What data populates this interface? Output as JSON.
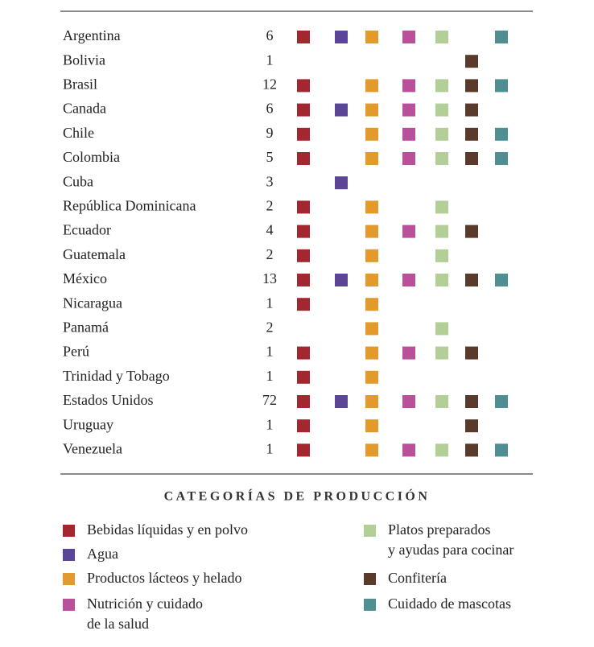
{
  "table": {
    "rows": [
      {
        "country": "Argentina",
        "count": "6",
        "marks": [
          true,
          true,
          true,
          true,
          true,
          false,
          true
        ]
      },
      {
        "country": "Bolivia",
        "count": "1",
        "marks": [
          false,
          false,
          false,
          false,
          false,
          true,
          false
        ]
      },
      {
        "country": "Brasil",
        "count": "12",
        "marks": [
          true,
          false,
          true,
          true,
          true,
          true,
          true
        ]
      },
      {
        "country": "Canada",
        "count": "6",
        "marks": [
          true,
          true,
          true,
          true,
          true,
          true,
          false
        ]
      },
      {
        "country": "Chile",
        "count": "9",
        "marks": [
          true,
          false,
          true,
          true,
          true,
          true,
          true
        ]
      },
      {
        "country": "Colombia",
        "count": "5",
        "marks": [
          true,
          false,
          true,
          true,
          true,
          true,
          true
        ]
      },
      {
        "country": "Cuba",
        "count": "3",
        "marks": [
          false,
          true,
          false,
          false,
          false,
          false,
          false
        ]
      },
      {
        "country": "República Dominicana",
        "count": "2",
        "marks": [
          true,
          false,
          true,
          false,
          true,
          false,
          false
        ]
      },
      {
        "country": "Ecuador",
        "count": "4",
        "marks": [
          true,
          false,
          true,
          true,
          true,
          true,
          false
        ]
      },
      {
        "country": "Guatemala",
        "count": "2",
        "marks": [
          true,
          false,
          true,
          false,
          true,
          false,
          false
        ]
      },
      {
        "country": "México",
        "count": "13",
        "marks": [
          true,
          true,
          true,
          true,
          true,
          true,
          true
        ]
      },
      {
        "country": "Nicaragua",
        "count": "1",
        "marks": [
          true,
          false,
          true,
          false,
          false,
          false,
          false
        ]
      },
      {
        "country": "Panamá",
        "count": "2",
        "marks": [
          false,
          false,
          true,
          false,
          true,
          false,
          false
        ]
      },
      {
        "country": "Perú",
        "count": "1",
        "marks": [
          true,
          false,
          true,
          true,
          true,
          true,
          false
        ]
      },
      {
        "country": "Trinidad y Tobago",
        "count": "1",
        "marks": [
          true,
          false,
          true,
          false,
          false,
          false,
          false
        ]
      },
      {
        "country": "Estados Unidos",
        "count": "72",
        "marks": [
          true,
          true,
          true,
          true,
          true,
          true,
          true
        ]
      },
      {
        "country": "Uruguay",
        "count": "1",
        "marks": [
          true,
          false,
          true,
          false,
          false,
          true,
          false
        ]
      },
      {
        "country": "Venezuela",
        "count": "1",
        "marks": [
          true,
          false,
          true,
          true,
          true,
          true,
          true
        ]
      }
    ]
  },
  "legend": {
    "title": "CATEGORÍAS DE PRODUCCIÓN",
    "items": [
      {
        "lines": [
          "Bebidas líquidas y en polvo"
        ],
        "color": "#a3272f"
      },
      {
        "lines": [
          "Agua"
        ],
        "color": "#5a4597"
      },
      {
        "lines": [
          "Productos lácteos y helado"
        ],
        "color": "#e39a2d"
      },
      {
        "lines": [
          "Nutrición y cuidado",
          "de la salud"
        ],
        "color": "#b9519a"
      },
      {
        "lines": [
          "Platos preparados",
          "y ayudas para cocinar"
        ],
        "color": "#b3cf98"
      },
      {
        "lines": [
          "Confitería"
        ],
        "color": "#5a3a2a"
      },
      {
        "lines": [
          "Cuidado de mascotas"
        ],
        "color": "#4f8f91"
      }
    ]
  }
}
